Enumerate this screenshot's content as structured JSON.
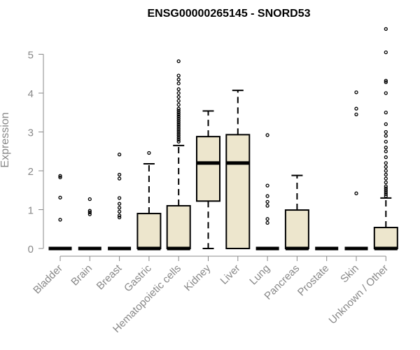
{
  "chart_data": {
    "type": "box",
    "title": "ENSG00000265145 - SNORD53",
    "ylabel": "Expression",
    "xlabel": "",
    "ylim": [
      0,
      5.7
    ],
    "yticks": [
      0,
      1,
      2,
      3,
      4,
      5
    ],
    "grid": false,
    "legend": "none",
    "categories": [
      "Bladder",
      "Brain",
      "Breast",
      "Gastric",
      "Hematopoietic cells",
      "Kidney",
      "Liver",
      "Lung",
      "Pancreas",
      "Prostate",
      "Skin",
      "Unknown / Other"
    ],
    "boxes": [
      {
        "category": "Bladder",
        "q1": 0,
        "median": 0,
        "q3": 0,
        "whisker_low": 0,
        "whisker_high": 0,
        "outliers": [
          0.74,
          1.31,
          1.83,
          1.87
        ]
      },
      {
        "category": "Brain",
        "q1": 0,
        "median": 0,
        "q3": 0,
        "whisker_low": 0,
        "whisker_high": 0,
        "outliers": [
          0.88,
          0.93,
          0.97,
          1.27
        ]
      },
      {
        "category": "Breast",
        "q1": 0,
        "median": 0,
        "q3": 0,
        "whisker_low": 0,
        "whisker_high": 0,
        "outliers": [
          0.8,
          0.85,
          0.95,
          1.05,
          1.15,
          1.3,
          1.8,
          1.9,
          2.42
        ]
      },
      {
        "category": "Gastric",
        "q1": 0,
        "median": 0,
        "q3": 0.9,
        "whisker_low": 0,
        "whisker_high": 2.18,
        "outliers": [
          2.46
        ]
      },
      {
        "category": "Hematopoietic cells",
        "q1": 0,
        "median": 0,
        "q3": 1.1,
        "whisker_low": 0,
        "whisker_high": 2.65,
        "outliers": [
          2.75,
          2.8,
          2.85,
          2.9,
          2.95,
          3.0,
          3.05,
          3.1,
          3.15,
          3.2,
          3.25,
          3.3,
          3.35,
          3.4,
          3.45,
          3.5,
          3.55,
          3.6,
          3.7,
          3.8,
          3.9,
          4.0,
          4.1,
          4.25,
          4.35,
          4.45,
          4.82
        ]
      },
      {
        "category": "Kidney",
        "q1": 1.22,
        "median": 2.2,
        "q3": 2.88,
        "whisker_low": 0,
        "whisker_high": 3.54,
        "outliers": []
      },
      {
        "category": "Liver",
        "q1": 0,
        "median": 2.2,
        "q3": 2.93,
        "whisker_low": 0,
        "whisker_high": 4.07,
        "outliers": []
      },
      {
        "category": "Lung",
        "q1": 0,
        "median": 0,
        "q3": 0,
        "whisker_low": 0,
        "whisker_high": 0,
        "outliers": [
          0.66,
          0.76,
          1.1,
          1.2,
          1.35,
          1.62,
          2.92
        ]
      },
      {
        "category": "Pancreas",
        "q1": 0,
        "median": 0,
        "q3": 0.99,
        "whisker_low": 0,
        "whisker_high": 1.88,
        "outliers": []
      },
      {
        "category": "Prostate",
        "q1": 0,
        "median": 0,
        "q3": 0,
        "whisker_low": 0,
        "whisker_high": 0,
        "outliers": []
      },
      {
        "category": "Skin",
        "q1": 0,
        "median": 0,
        "q3": 0,
        "whisker_low": 0,
        "whisker_high": 0,
        "outliers": [
          1.42,
          3.45,
          3.6,
          4.02
        ]
      },
      {
        "category": "Unknown / Other",
        "q1": 0,
        "median": 0,
        "q3": 0.54,
        "whisker_low": 0,
        "whisker_high": 1.3,
        "outliers": [
          1.35,
          1.4,
          1.45,
          1.5,
          1.55,
          1.6,
          1.7,
          1.8,
          1.9,
          2.0,
          2.1,
          2.2,
          2.35,
          2.5,
          2.6,
          2.75,
          2.9,
          3.0,
          3.2,
          3.5,
          4.0,
          4.28,
          4.32,
          5.05,
          5.65
        ]
      }
    ]
  },
  "colors": {
    "box_fill": "#ede6cd",
    "box_stroke": "#000000",
    "axis": "#888888",
    "tick_text": "#888888",
    "title": "#000000"
  }
}
